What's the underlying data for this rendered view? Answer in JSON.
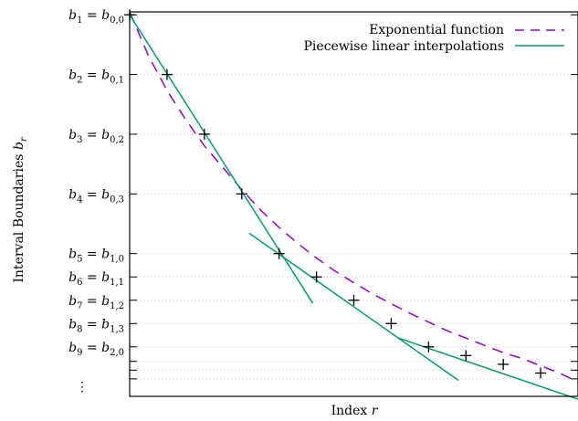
{
  "chart_data": {
    "type": "line",
    "xlabel": "Index r",
    "ylabel": "Interval Boundaries b_r",
    "grid": true,
    "legend_position": "top-right",
    "xlim": [
      0,
      12
    ],
    "ylim": [
      -0.32,
      1.0
    ],
    "y_tick_labels": [
      {
        "main": "b",
        "sub": "1",
        "eq": "b",
        "esub": "0,0",
        "y": 0.99
      },
      {
        "main": "b",
        "sub": "2",
        "eq": "b",
        "esub": "0,1",
        "y": 0.785
      },
      {
        "main": "b",
        "sub": "3",
        "eq": "b",
        "esub": "0,2",
        "y": 0.58
      },
      {
        "main": "b",
        "sub": "4",
        "eq": "b",
        "esub": "0,3",
        "y": 0.375
      },
      {
        "main": "b",
        "sub": "5",
        "eq": "b",
        "esub": "1,0",
        "y": 0.17
      },
      {
        "main": "b",
        "sub": "6",
        "eq": "b",
        "esub": "1,1",
        "y": 0.09
      },
      {
        "main": "b",
        "sub": "7",
        "eq": "b",
        "esub": "1,2",
        "y": 0.01
      },
      {
        "main": "b",
        "sub": "8",
        "eq": "b",
        "esub": "1,3",
        "y": -0.07
      },
      {
        "main": "b",
        "sub": "9",
        "eq": "b",
        "esub": "2,0",
        "y": -0.15
      }
    ],
    "extra_y_ticks": [
      -0.2,
      -0.23,
      -0.26
    ],
    "vdots": "⋮",
    "series": [
      {
        "name": "Exponential function",
        "style": "dashed",
        "color": "#9400d3",
        "x": [
          0,
          0.5,
          1,
          1.5,
          2,
          2.5,
          3,
          3.5,
          4,
          4.5,
          5,
          5.5,
          6,
          6.5,
          7,
          7.5,
          8,
          8.5,
          9,
          9.5,
          10,
          10.5,
          11,
          11.5,
          12
        ],
        "y": [
          1.0,
          0.85,
          0.73,
          0.63,
          0.54,
          0.465,
          0.39,
          0.32,
          0.26,
          0.205,
          0.155,
          0.11,
          0.07,
          0.032,
          -0.002,
          -0.035,
          -0.065,
          -0.095,
          -0.12,
          -0.145,
          -0.17,
          -0.19,
          -0.215,
          -0.24,
          -0.27
        ]
      },
      {
        "name": "Piecewise linear interpolations",
        "style": "solid",
        "color": "#009e73",
        "segments": [
          {
            "x": [
              0,
              4.9
            ],
            "y": [
              0.99,
              -0.0
            ]
          },
          {
            "x": [
              3.2,
              8.8
            ],
            "y": [
              0.24,
              -0.265
            ]
          },
          {
            "x": [
              7.2,
              12
            ],
            "y": [
              -0.12,
              -0.33
            ]
          }
        ]
      }
    ],
    "knots": {
      "x": [
        0,
        1,
        2,
        3,
        4,
        5,
        6,
        7,
        8,
        9,
        10,
        11
      ],
      "y": [
        0.99,
        0.785,
        0.58,
        0.375,
        0.17,
        0.09,
        0.01,
        -0.07,
        -0.15,
        -0.18,
        -0.21,
        -0.24
      ]
    }
  }
}
